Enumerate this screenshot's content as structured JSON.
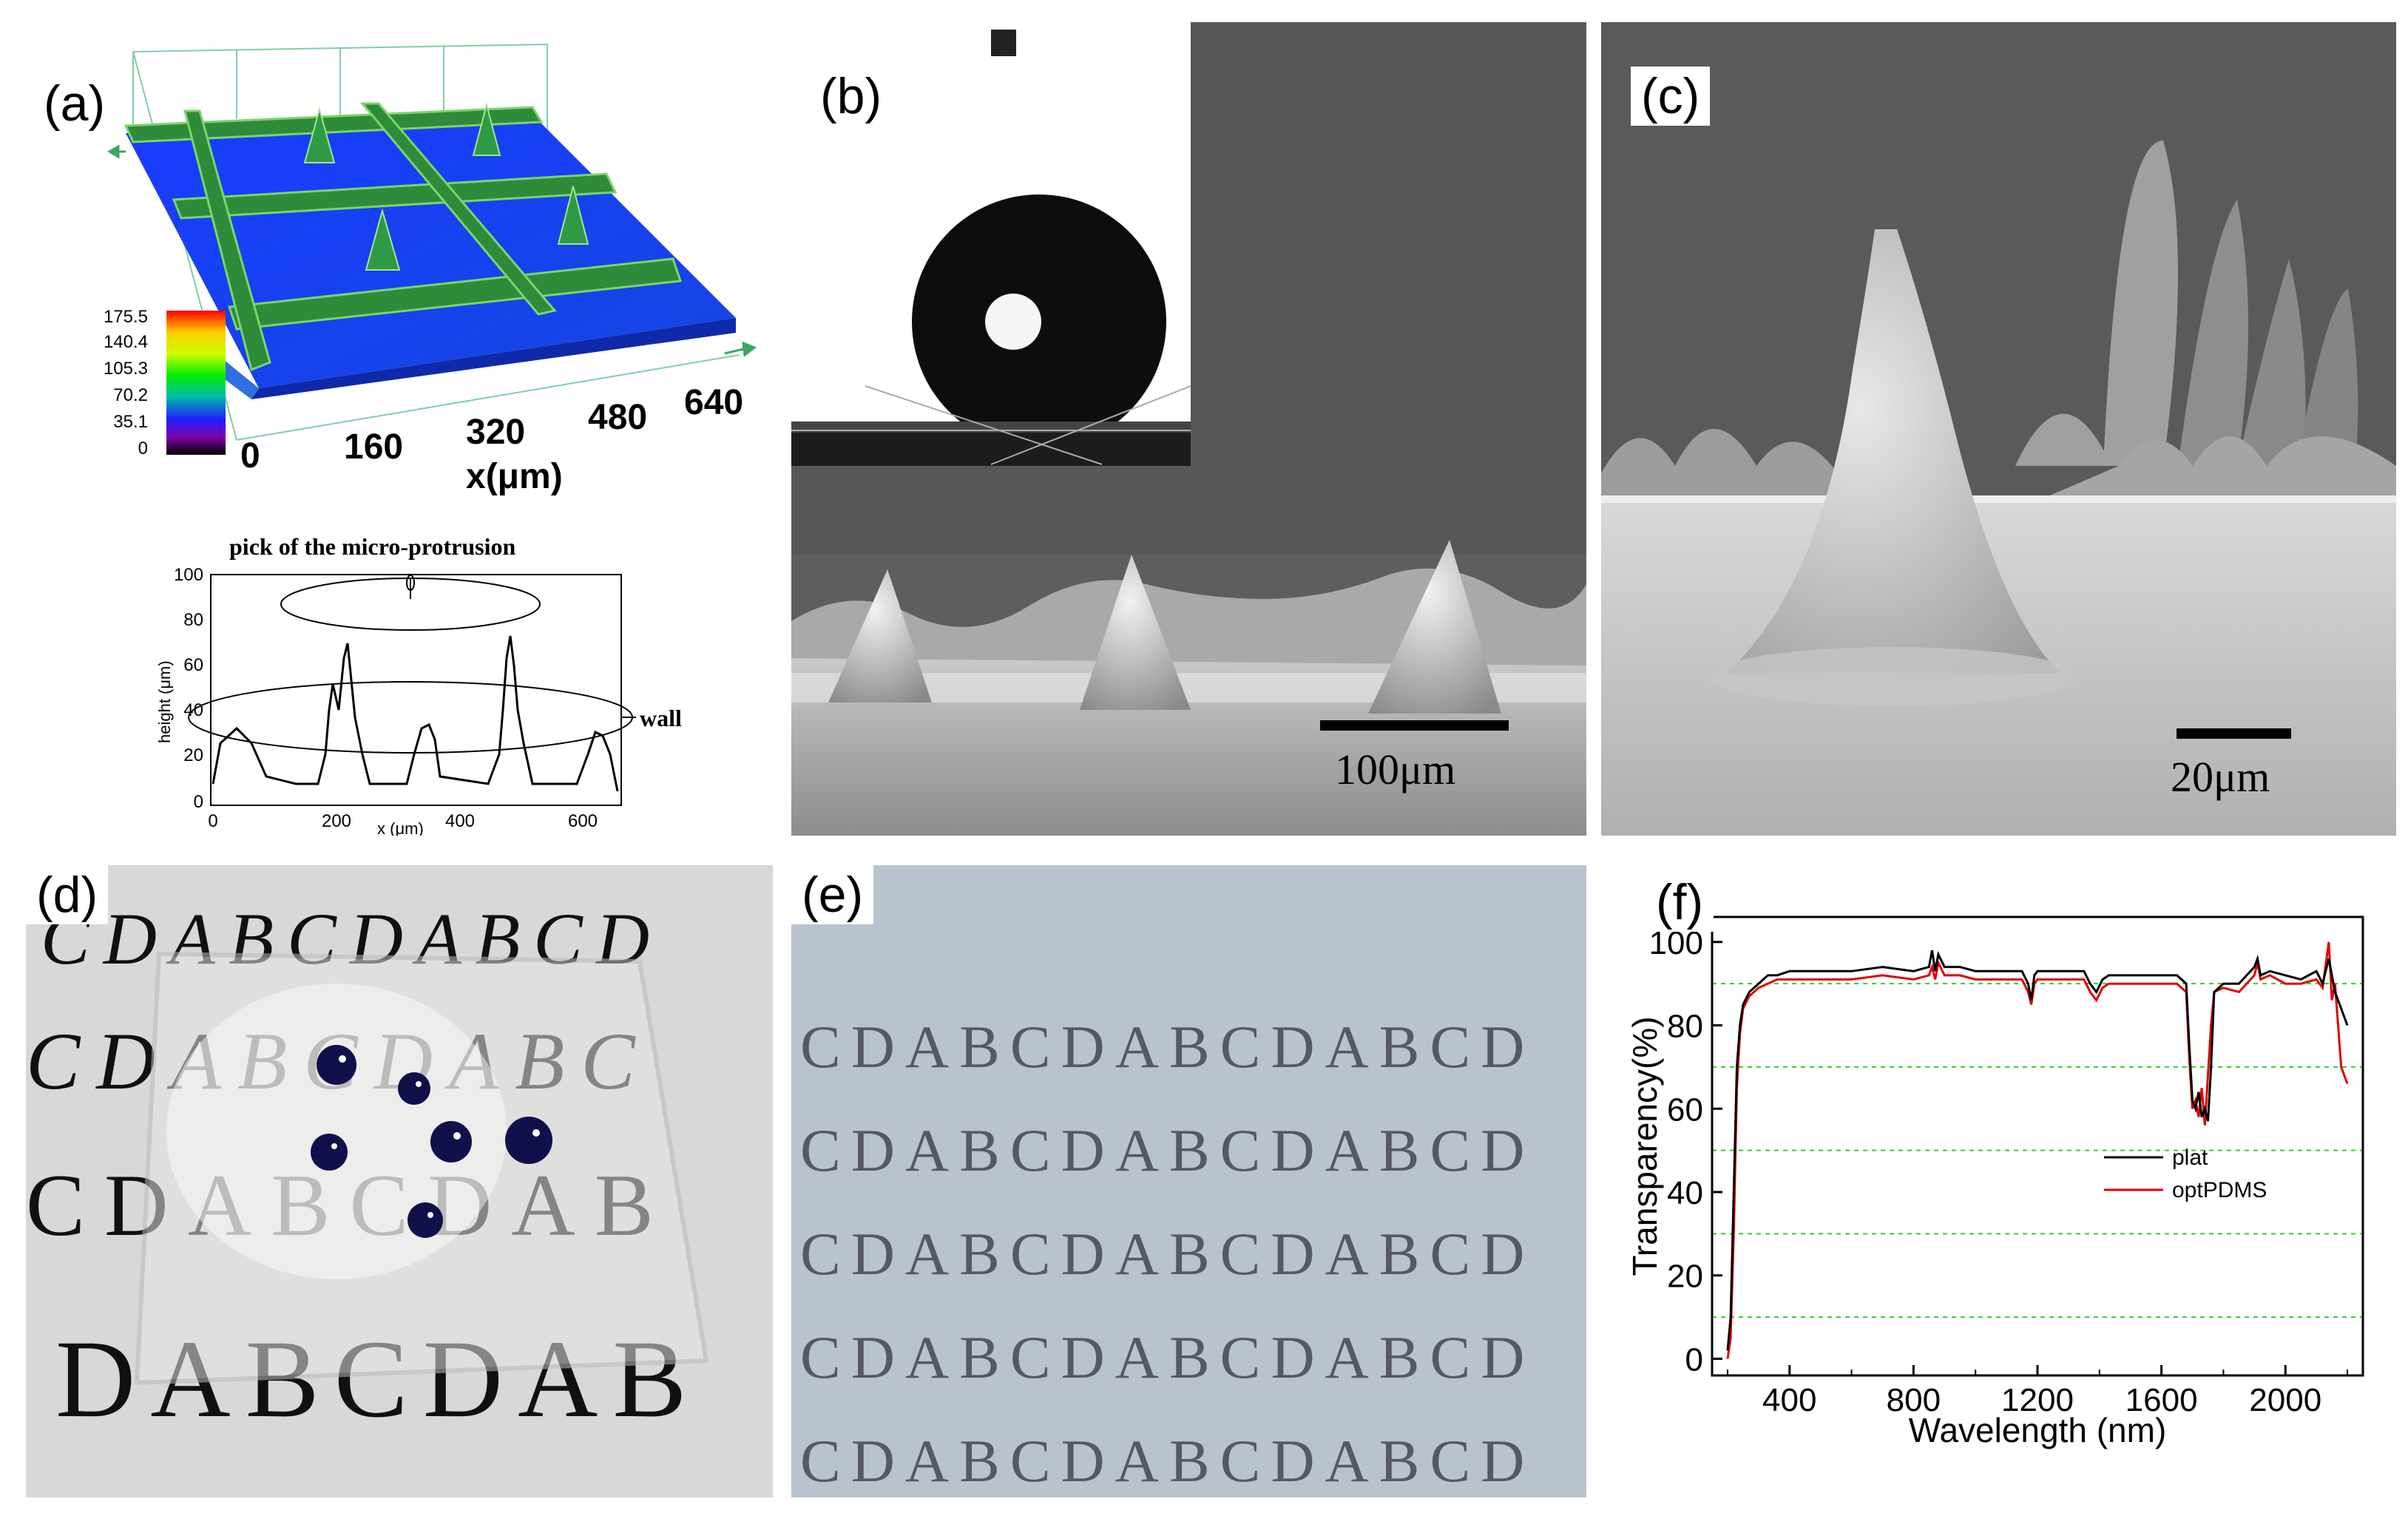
{
  "panels": {
    "a": {
      "label": "(a)",
      "colorbar_ticks": [
        "175.5",
        "140.4",
        "105.3",
        "70.2",
        "35.1",
        "0"
      ],
      "x_ticks": [
        "0",
        "160",
        "320",
        "480",
        "640"
      ],
      "x_label": "x(μm)",
      "profile_title": "pick of the micro-protrusion",
      "profile_annotation": "wall",
      "profile_xlabel": "x (μm)",
      "profile_ylabel": "height (μm)",
      "profile_xticks": [
        "0",
        "200",
        "400",
        "600"
      ],
      "profile_yticks": [
        "0",
        "20",
        "40",
        "60",
        "80",
        "100"
      ]
    },
    "b": {
      "label": "(b)",
      "scalebar": "100μm"
    },
    "c": {
      "label": "(c)",
      "scalebar": "20μm"
    },
    "d": {
      "label": "(d)",
      "rows": [
        "CDABCDABCD",
        "CDABCDABC",
        "CDABCDAB",
        "DABCDAB"
      ]
    },
    "e": {
      "label": "(e)",
      "rows": [
        "CDABCDABCDABCD",
        "CDABCDABCDABCD",
        "CDABCDABCDABCD",
        "CDABCDABCDABCD",
        "CDABCDABCDABCD"
      ]
    },
    "f": {
      "label": "(f)"
    }
  },
  "chart_data": {
    "type": "line",
    "title": "",
    "xlabel": "Wavelength (nm)",
    "ylabel": "Transparency(%)",
    "xlim": [
      150,
      2250
    ],
    "ylim": [
      -4,
      106
    ],
    "xticks": [
      "400",
      "800",
      "1200",
      "1600",
      "2000"
    ],
    "yticks": [
      "0",
      "20",
      "40",
      "60",
      "80",
      "100"
    ],
    "grid_y": [
      10,
      30,
      50,
      70,
      90
    ],
    "legend_position": "right-middle",
    "series": [
      {
        "name": "plat",
        "color": "#000000",
        "x": [
          200,
          210,
          220,
          230,
          240,
          250,
          270,
          300,
          330,
          360,
          400,
          450,
          500,
          600,
          700,
          800,
          850,
          860,
          870,
          880,
          900,
          950,
          1000,
          1100,
          1150,
          1170,
          1180,
          1190,
          1200,
          1250,
          1300,
          1350,
          1370,
          1390,
          1410,
          1430,
          1500,
          1600,
          1650,
          1680,
          1690,
          1700,
          1710,
          1720,
          1730,
          1740,
          1750,
          1760,
          1770,
          1800,
          1850,
          1900,
          1910,
          1920,
          1950,
          2000,
          2050,
          2100,
          2120,
          2140,
          2160,
          2180,
          2200
        ],
        "y": [
          2,
          10,
          40,
          70,
          80,
          85,
          88,
          90,
          92,
          92,
          93,
          93,
          93,
          93,
          94,
          93,
          94,
          98,
          93,
          97,
          94,
          94,
          93,
          93,
          93,
          90,
          86,
          92,
          93,
          93,
          93,
          93,
          90,
          88,
          91,
          92,
          92,
          92,
          92,
          90,
          75,
          62,
          60,
          64,
          58,
          60,
          57,
          70,
          88,
          90,
          90,
          94,
          96,
          92,
          93,
          92,
          91,
          93,
          90,
          96,
          88,
          84,
          80
        ]
      },
      {
        "name": "optPDMS",
        "color": "#e00000",
        "x": [
          200,
          210,
          220,
          230,
          240,
          250,
          270,
          300,
          330,
          360,
          400,
          450,
          500,
          600,
          700,
          800,
          850,
          860,
          870,
          880,
          900,
          950,
          1000,
          1100,
          1150,
          1170,
          1180,
          1190,
          1200,
          1250,
          1300,
          1350,
          1370,
          1390,
          1410,
          1430,
          1500,
          1600,
          1650,
          1680,
          1690,
          1700,
          1710,
          1720,
          1730,
          1740,
          1750,
          1760,
          1770,
          1800,
          1850,
          1900,
          1910,
          1920,
          1950,
          2000,
          2050,
          2100,
          2120,
          2140,
          2150,
          2160,
          2180,
          2200
        ],
        "y": [
          0,
          5,
          30,
          65,
          78,
          84,
          87,
          89,
          90,
          91,
          91,
          91,
          91,
          91,
          92,
          91,
          92,
          94,
          91,
          95,
          92,
          92,
          91,
          91,
          91,
          88,
          85,
          90,
          91,
          91,
          91,
          91,
          88,
          86,
          89,
          90,
          90,
          90,
          90,
          88,
          72,
          60,
          62,
          58,
          65,
          56,
          68,
          80,
          88,
          89,
          88,
          92,
          95,
          91,
          92,
          90,
          90,
          91,
          89,
          100,
          86,
          90,
          70,
          66
        ]
      }
    ]
  }
}
